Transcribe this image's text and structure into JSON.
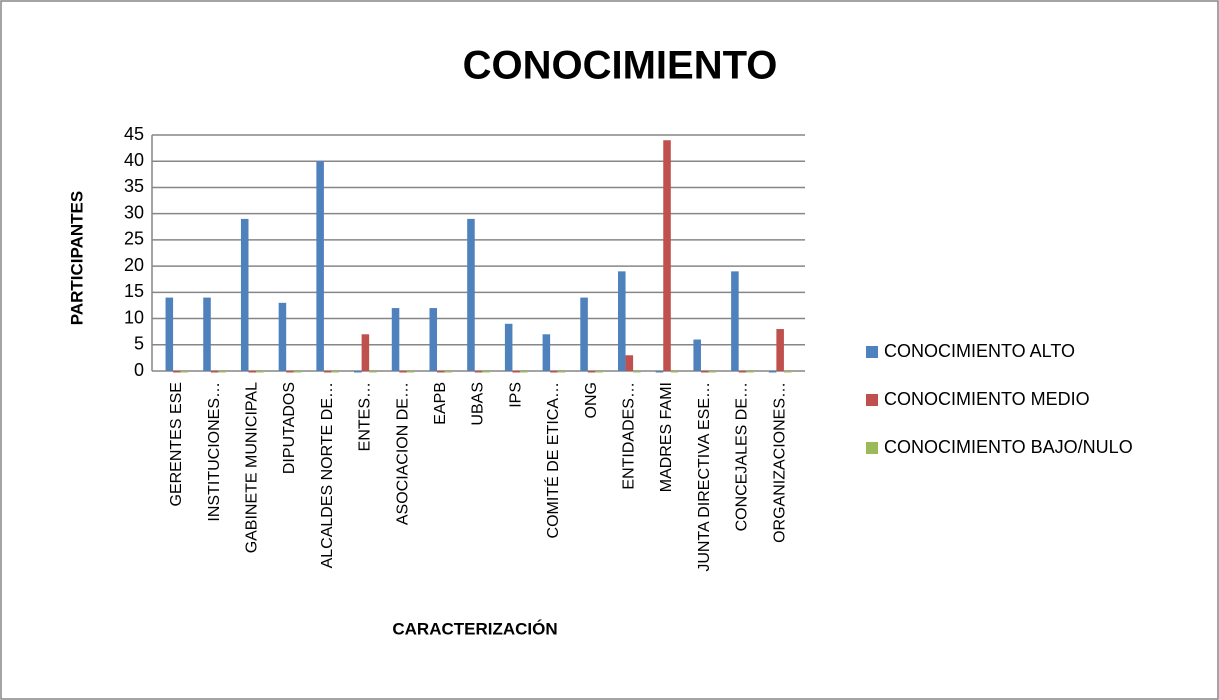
{
  "chart_data": {
    "type": "bar",
    "title": "CONOCIMIENTO",
    "x_label": "CARACTERIZACIÓN",
    "y_label": "PARTICIPANTES",
    "categories": [
      "GERENTES ESE",
      "INSTITUCIONES…",
      "GABINETE MUNICIPAL",
      "DIPUTADOS",
      "ALCALDES NORTE DE…",
      "ENTES…",
      "ASOCIACION DE…",
      "EAPB",
      "UBAS",
      "IPS",
      "COMITÉ DE  ETICA…",
      "ONG",
      "ENTIDADES…",
      "MADRES FAMI",
      "JUNTA DIRECTIVA ESE…",
      "CONCEJALES DE…",
      "ORGANIZACIONES…"
    ],
    "series": [
      {
        "name": "CONOCIMIENTO ALTO",
        "color": "#4f81bd",
        "values": [
          14,
          14,
          29,
          13,
          40,
          0,
          12,
          12,
          29,
          9,
          7,
          14,
          19,
          0,
          6,
          19,
          0
        ]
      },
      {
        "name": "CONOCIMIENTO MEDIO",
        "color": "#c0504d",
        "values": [
          0,
          0,
          0,
          0,
          0,
          7,
          0,
          0,
          0,
          0,
          0,
          0,
          3,
          44,
          0,
          0,
          8
        ]
      },
      {
        "name": "CONOCIMIENTO BAJO/NULO",
        "color": "#9bbb59",
        "values": [
          0,
          0,
          0,
          0,
          0,
          0,
          0,
          0,
          0,
          0,
          0,
          0,
          0,
          0,
          0,
          0,
          0
        ]
      }
    ],
    "ylim": [
      0,
      45
    ],
    "yticks": [
      0,
      5,
      10,
      15,
      20,
      25,
      30,
      35,
      40,
      45
    ],
    "grid": true,
    "legend": "right"
  }
}
